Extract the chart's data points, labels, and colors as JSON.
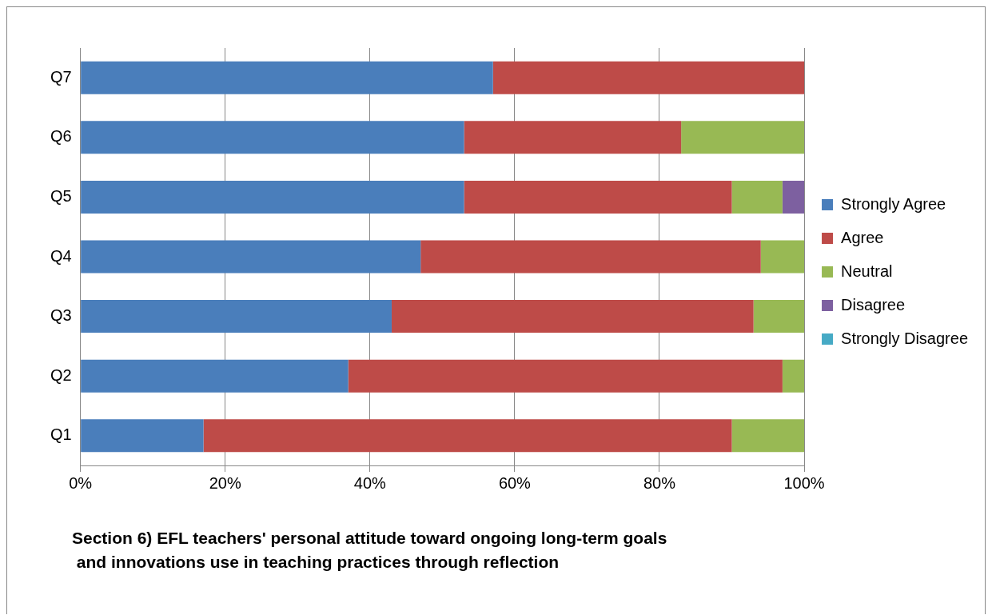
{
  "chart_data": {
    "type": "bar",
    "orientation": "horizontal",
    "stacked": true,
    "title": "Section 6) EFL teachers' personal attitude toward ongoing long-term goals\n and innovations use in teaching practices through reflection",
    "categories": [
      "Q7",
      "Q6",
      "Q5",
      "Q4",
      "Q3",
      "Q2",
      "Q1"
    ],
    "series": [
      {
        "name": "Strongly Agree",
        "color": "#4a7ebb",
        "values": [
          57,
          53,
          53,
          47,
          43,
          37,
          17
        ]
      },
      {
        "name": "Agree",
        "color": "#be4b48",
        "values": [
          43,
          30,
          37,
          47,
          50,
          60,
          73
        ]
      },
      {
        "name": "Neutral",
        "color": "#98b954",
        "values": [
          0,
          17,
          7,
          6,
          7,
          3,
          10
        ]
      },
      {
        "name": "Disagree",
        "color": "#7d60a0",
        "values": [
          0,
          0,
          3,
          0,
          0,
          0,
          0
        ]
      },
      {
        "name": "Strongly Disagree",
        "color": "#46aac5",
        "values": [
          0,
          0,
          0,
          0,
          0,
          0,
          0
        ]
      }
    ],
    "xlim": [
      0,
      100
    ],
    "xticks": [
      {
        "value": 0,
        "label": "0%"
      },
      {
        "value": 20,
        "label": "20%"
      },
      {
        "value": 40,
        "label": "40%"
      },
      {
        "value": 60,
        "label": "60%"
      },
      {
        "value": 80,
        "label": "80%"
      },
      {
        "value": 100,
        "label": "100%"
      }
    ],
    "grid": "x",
    "legend": "right"
  }
}
